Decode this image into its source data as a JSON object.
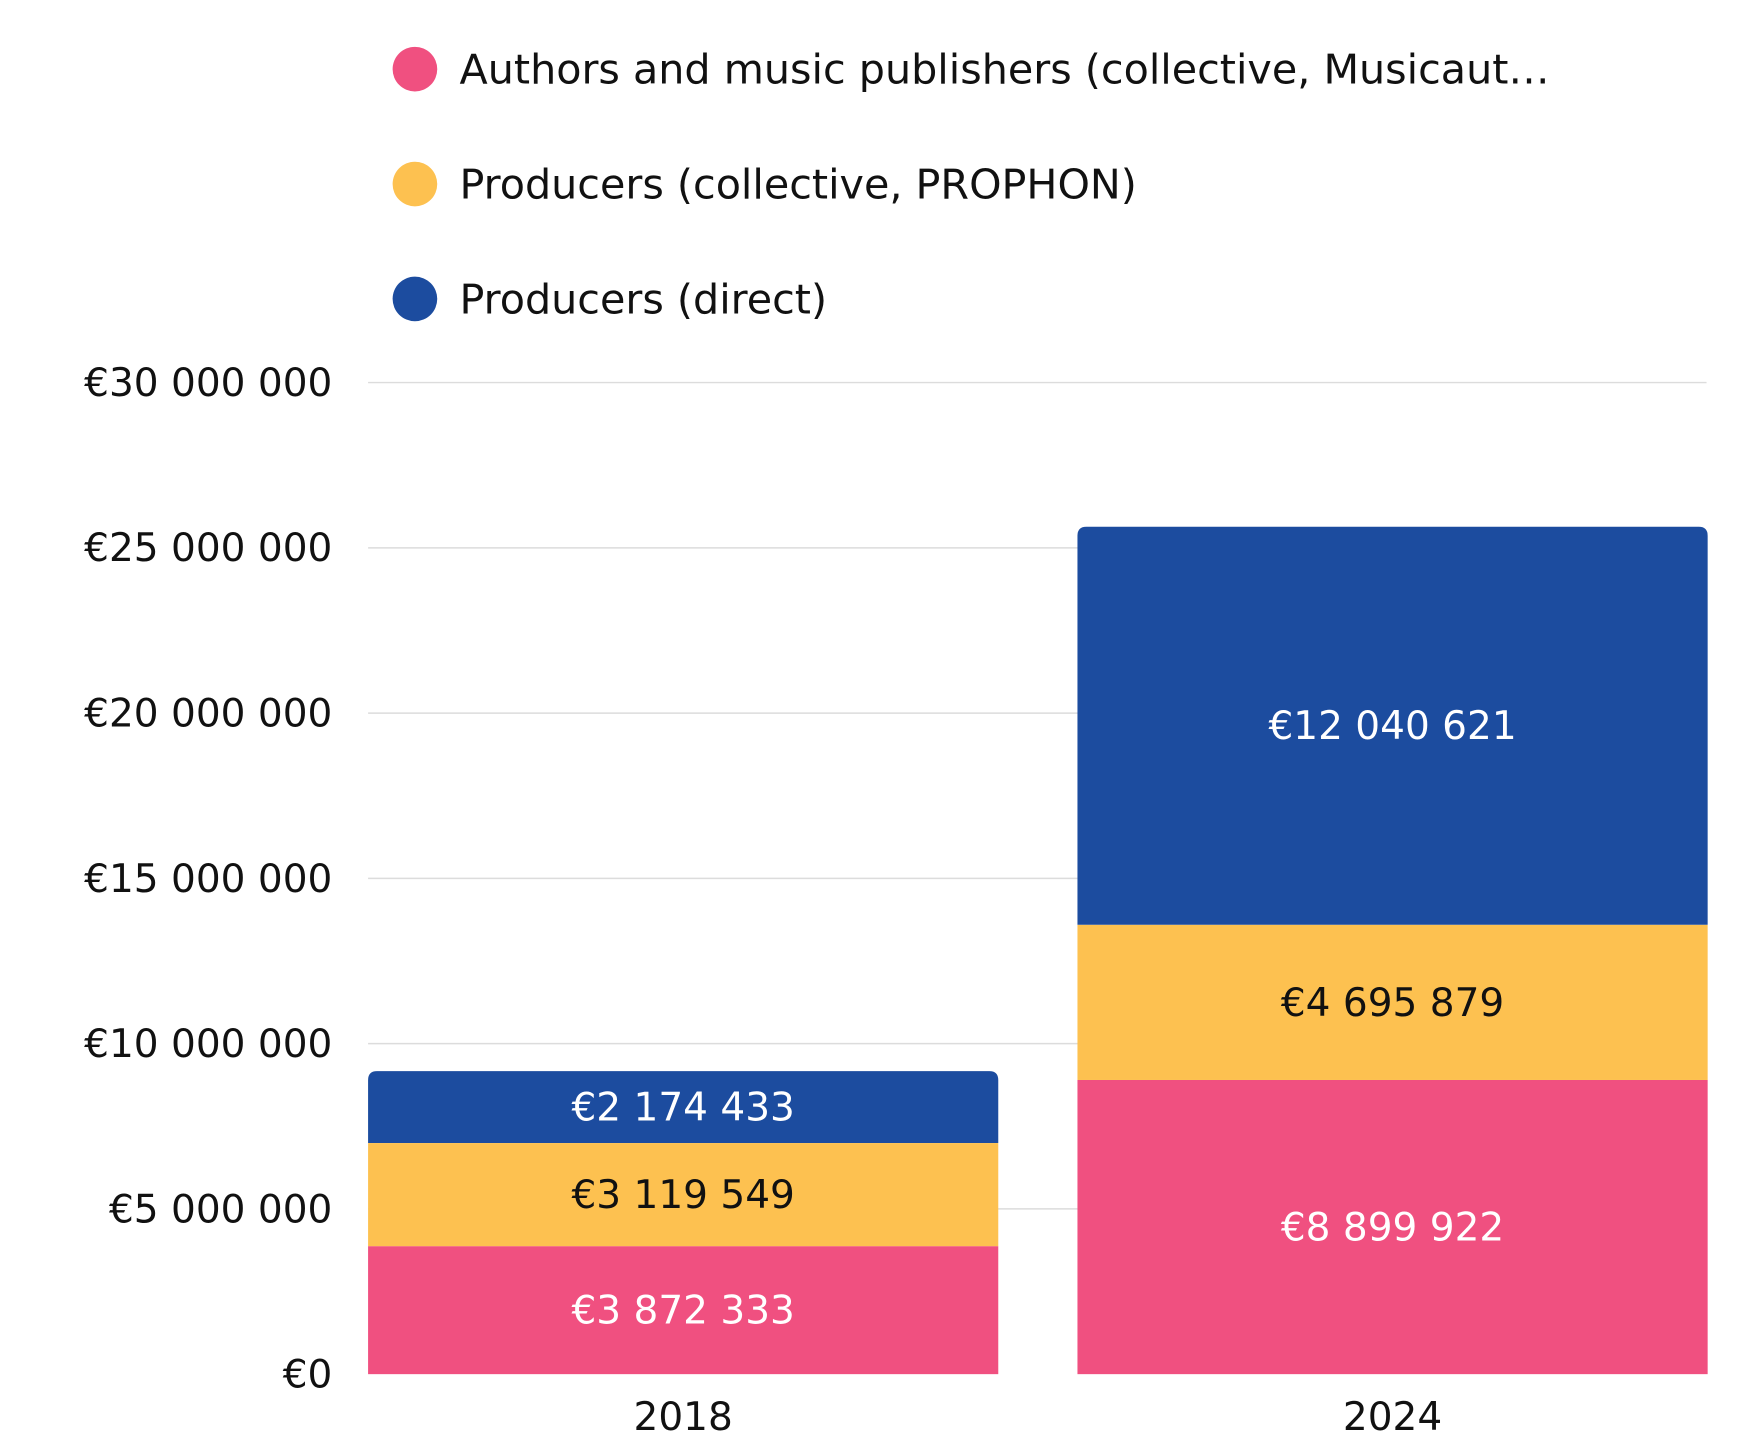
{
  "chart_data": {
    "type": "bar",
    "stacked": true,
    "categories": [
      "2018",
      "2024"
    ],
    "series": [
      {
        "name": "Authors and music publishers (collective, Musicaut…",
        "color": "#F05080",
        "label_color": "#ffffff",
        "values": [
          3872333,
          8899922
        ],
        "labels": [
          "€3 872 333",
          "€8 899 922"
        ]
      },
      {
        "name": "Producers (collective, PROPHON)",
        "color": "#FDC150",
        "label_color": "#111111",
        "values": [
          3119549,
          4695879
        ],
        "labels": [
          "€3 119 549",
          "€4 695 879"
        ]
      },
      {
        "name": "Producers (direct)",
        "color": "#1C4C9F",
        "label_color": "#ffffff",
        "values": [
          2174433,
          12040621
        ],
        "labels": [
          "€2 174 433",
          "€12 040 621"
        ]
      }
    ],
    "ylim": [
      0,
      30000000
    ],
    "yticks": [
      0,
      5000000,
      10000000,
      15000000,
      20000000,
      25000000,
      30000000
    ],
    "ytick_labels": [
      "€0",
      "€5 000 000",
      "€10 000 000",
      "€15 000 000",
      "€20 000 000",
      "€25 000 000",
      "€30 000 000"
    ],
    "grid": true,
    "legend_position": "top"
  }
}
